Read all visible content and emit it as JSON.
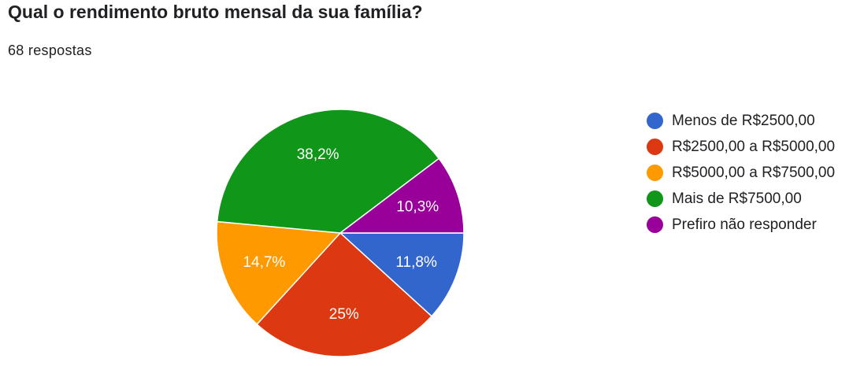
{
  "header": {
    "title": "Qual o rendimento bruto mensal da sua família?",
    "responses": "68 respostas"
  },
  "chart_data": {
    "type": "pie",
    "categories": [
      "Menos de R$2500,00",
      "R$2500,00 a R$5000,00",
      "R$5000,00 a R$7500,00",
      "Mais de R$7500,00",
      "Prefiro não responder"
    ],
    "values": [
      8,
      17,
      10,
      26,
      7
    ],
    "data_labels": [
      "11,8%",
      "25%",
      "14,7%",
      "38,2%",
      "10,3%"
    ],
    "colors": [
      "#3366cc",
      "#dc3912",
      "#ff9900",
      "#109618",
      "#990099"
    ],
    "legend_position": "right"
  }
}
